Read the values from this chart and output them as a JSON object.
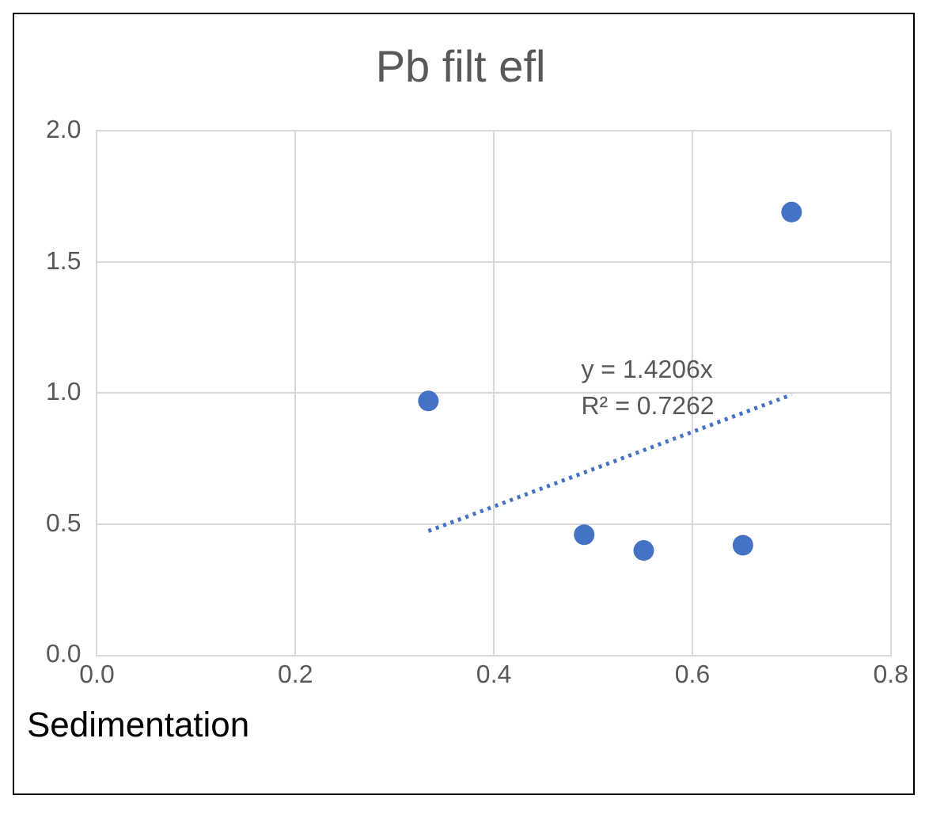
{
  "chart_data": {
    "type": "scatter",
    "title": "Pb filt efl",
    "xlabel": "Sedimentation",
    "series": [
      {
        "color": "#4472c4",
        "x": [
          0.334,
          0.491,
          0.551,
          0.651,
          0.7
        ],
        "values": [
          0.97,
          0.46,
          0.4,
          0.42,
          1.69
        ],
        "marker": "circle"
      },
      {
        "type": "line",
        "color": "#4472c4",
        "x": [
          0.334,
          0.7
        ],
        "values": [
          0.474,
          0.994
        ],
        "line_style": "dotted",
        "marker": "none"
      }
    ],
    "annotations": [
      "y = 1.4206x",
      "R² = 0.7262"
    ],
    "xlim": [
      0,
      0.8
    ],
    "ylim": [
      0,
      2
    ],
    "xticks": [
      {
        "value": 0,
        "label": "0.0"
      },
      {
        "value": 0.2,
        "label": "0.2"
      },
      {
        "value": 0.4,
        "label": "0.4"
      },
      {
        "value": 0.6,
        "label": "0.6"
      },
      {
        "value": 0.8,
        "label": "0.8"
      }
    ],
    "yticks": [
      {
        "value": 0,
        "label": "0.0"
      },
      {
        "value": 0.5,
        "label": "0.5"
      },
      {
        "value": 1,
        "label": "1.0"
      },
      {
        "value": 1.5,
        "label": "1.5"
      },
      {
        "value": 2,
        "label": "2.0"
      }
    ],
    "grid": true,
    "legend": false
  }
}
